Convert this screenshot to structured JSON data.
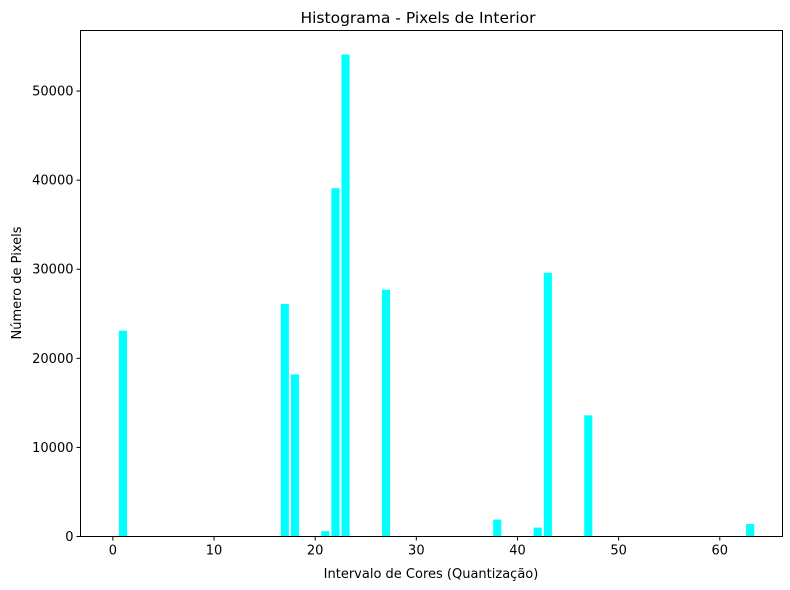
{
  "chart_data": {
    "type": "bar",
    "title": "Histograma - Pixels de Interior",
    "xlabel": "Intervalo de Cores (Quantização)",
    "ylabel": "Número de Pixels",
    "bar_color": "#00ffff",
    "xlim": [
      -3.2,
      66.2
    ],
    "ylim": [
      0,
      56800
    ],
    "x_ticks": [
      0,
      10,
      20,
      30,
      40,
      50,
      60
    ],
    "y_ticks": [
      0,
      10000,
      20000,
      30000,
      40000,
      50000
    ],
    "x_tick_labels": [
      "0",
      "10",
      "20",
      "30",
      "40",
      "50",
      "60"
    ],
    "y_tick_labels": [
      "0",
      "10000",
      "20000",
      "30000",
      "40000",
      "50000"
    ],
    "bar_width": 0.8,
    "grid": false,
    "x": [
      1,
      17,
      18,
      21,
      22,
      23,
      27,
      38,
      42,
      43,
      47,
      63
    ],
    "values": [
      23100,
      26100,
      18200,
      600,
      39100,
      54100,
      27700,
      1900,
      1000,
      29600,
      13600,
      1400
    ]
  }
}
